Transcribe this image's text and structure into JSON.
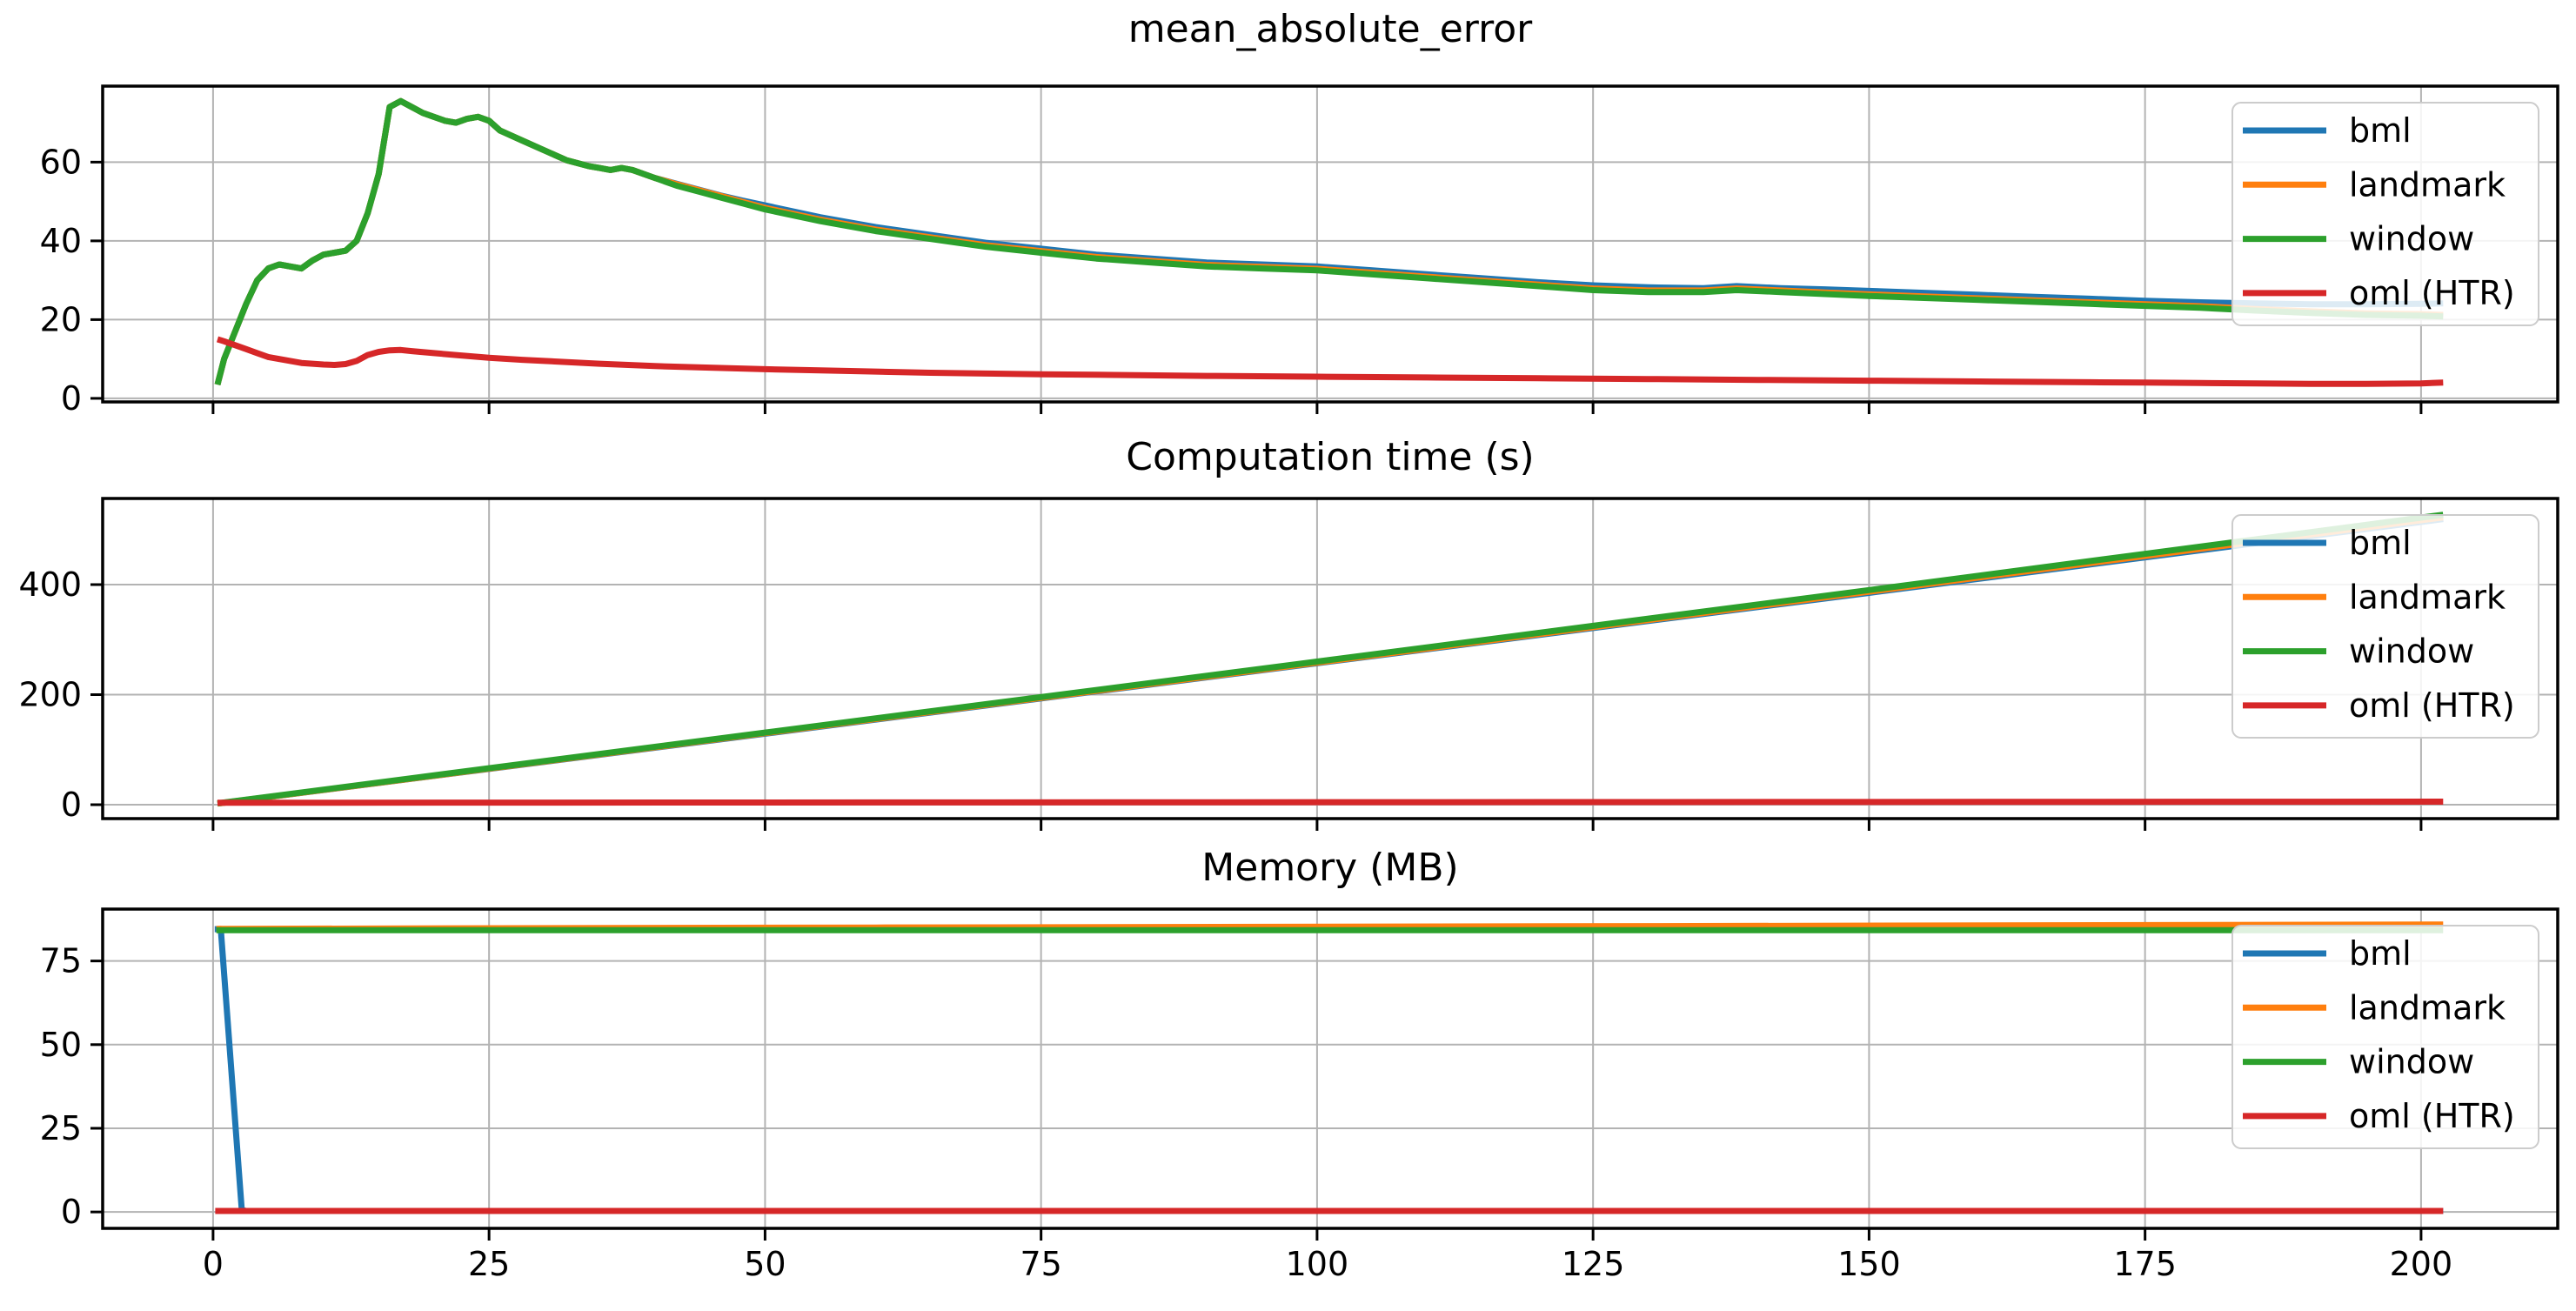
{
  "figure": {
    "background": "#ffffff",
    "grid_color": "#b3b3b3",
    "spine_color": "#000000",
    "tick_label_color": "#000000",
    "legend_border_color": "#cccccc",
    "legend_background": "#ffffff"
  },
  "series_colors": {
    "bml": "#1f77b4",
    "landmark": "#ff7f0e",
    "window": "#2ca02c",
    "oml": "#d62728"
  },
  "chart_data": [
    {
      "type": "line",
      "title": "mean_absolute_error",
      "xlim": [
        -10,
        212.4
      ],
      "ylim": [
        -0.9,
        79.3
      ],
      "xticks": [
        0,
        25,
        50,
        75,
        100,
        125,
        150,
        175,
        200
      ],
      "yticks": [
        0,
        20,
        40,
        60
      ],
      "show_x_tick_labels": false,
      "grid": true,
      "legend_position": "upper-right",
      "legend": [
        "bml",
        "landmark",
        "window",
        "oml (HTR)"
      ],
      "series": [
        {
          "name": "bml",
          "color": "#1f77b4",
          "x": [
            0.4,
            1,
            2,
            3,
            4,
            5,
            6,
            7,
            8,
            9,
            10,
            11,
            12,
            13,
            14,
            15,
            16,
            17,
            18,
            19,
            20,
            21,
            22,
            23,
            24,
            25,
            26,
            28,
            30,
            32,
            34,
            35,
            36,
            37,
            38,
            40,
            42,
            44,
            46,
            48,
            50,
            55,
            60,
            65,
            70,
            75,
            80,
            85,
            90,
            95,
            100,
            105,
            110,
            115,
            120,
            125,
            130,
            135,
            138,
            142,
            146,
            150,
            155,
            160,
            165,
            170,
            175,
            180,
            185,
            190,
            195,
            200,
            202
          ],
          "y": [
            3.5,
            10,
            17,
            24,
            30,
            33,
            34,
            33.5,
            33,
            35,
            36.5,
            37,
            37.5,
            40,
            47,
            57,
            74,
            75.5,
            74,
            72.5,
            71.5,
            70.5,
            70,
            71,
            71.5,
            70.5,
            68,
            65.5,
            63,
            60.5,
            59,
            58.5,
            58,
            58.5,
            58,
            56,
            54.5,
            53,
            51.5,
            50.2,
            49,
            46,
            43.5,
            41.5,
            39.5,
            38,
            36.5,
            35.5,
            34.5,
            34,
            33.5,
            32.5,
            31.5,
            30.5,
            29.5,
            28.7,
            28.2,
            28,
            28.5,
            28,
            27.7,
            27.3,
            26.8,
            26.3,
            25.8,
            25.3,
            24.8,
            24.4,
            24.1,
            23.9,
            23.9,
            24,
            24.1
          ]
        },
        {
          "name": "landmark",
          "color": "#ff7f0e",
          "x": [
            0.4,
            1,
            2,
            3,
            4,
            5,
            6,
            7,
            8,
            9,
            10,
            11,
            12,
            13,
            14,
            15,
            16,
            17,
            18,
            19,
            20,
            21,
            22,
            23,
            24,
            25,
            26,
            28,
            30,
            32,
            34,
            35,
            36,
            37,
            38,
            40,
            42,
            44,
            46,
            48,
            50,
            55,
            60,
            65,
            70,
            75,
            80,
            85,
            90,
            95,
            100,
            105,
            110,
            115,
            120,
            125,
            130,
            135,
            138,
            142,
            146,
            150,
            155,
            160,
            165,
            170,
            175,
            180,
            185,
            190,
            195,
            200,
            202
          ],
          "y": [
            3.5,
            10,
            17,
            24,
            30,
            33,
            34,
            33.5,
            33,
            35,
            36.5,
            37,
            37.5,
            40,
            47,
            57,
            74,
            75.5,
            74,
            72.5,
            71.5,
            70.5,
            70,
            71,
            71.5,
            70.5,
            68,
            65.5,
            63,
            60.5,
            59,
            58.5,
            58,
            58.5,
            58,
            56,
            54.4,
            52.9,
            51.4,
            49.9,
            48.4,
            45.4,
            42.9,
            40.9,
            38.9,
            37.4,
            35.9,
            34.9,
            33.9,
            33.4,
            32.9,
            31.9,
            30.9,
            29.9,
            28.9,
            27.9,
            27.4,
            27.4,
            27.9,
            27.4,
            26.9,
            26.4,
            25.9,
            25.4,
            24.9,
            24.4,
            23.9,
            23.4,
            22.7,
            22.1,
            21.6,
            21.4,
            21.2
          ]
        },
        {
          "name": "window",
          "color": "#2ca02c",
          "x": [
            0.4,
            1,
            2,
            3,
            4,
            5,
            6,
            7,
            8,
            9,
            10,
            11,
            12,
            13,
            14,
            15,
            16,
            17,
            18,
            19,
            20,
            21,
            22,
            23,
            24,
            25,
            26,
            28,
            30,
            32,
            34,
            35,
            36,
            37,
            38,
            40,
            42,
            44,
            46,
            48,
            50,
            55,
            60,
            65,
            70,
            75,
            80,
            85,
            90,
            95,
            100,
            105,
            110,
            115,
            120,
            125,
            130,
            135,
            138,
            142,
            146,
            150,
            155,
            160,
            165,
            170,
            175,
            180,
            185,
            190,
            195,
            200,
            202
          ],
          "y": [
            3.5,
            10,
            17,
            24,
            30,
            33,
            34,
            33.5,
            33,
            35,
            36.5,
            37,
            37.5,
            40,
            47,
            57,
            74,
            75.5,
            74,
            72.5,
            71.5,
            70.5,
            70,
            71,
            71.5,
            70.5,
            68,
            65.5,
            63,
            60.5,
            59,
            58.5,
            58,
            58.5,
            58,
            56,
            54,
            52.5,
            51,
            49.5,
            48,
            45,
            42.5,
            40.5,
            38.5,
            37,
            35.5,
            34.5,
            33.5,
            33,
            32.5,
            31.5,
            30.5,
            29.5,
            28.5,
            27.5,
            27,
            27,
            27.5,
            27,
            26.5,
            26,
            25.5,
            25,
            24.5,
            24,
            23.5,
            23,
            22.3,
            21.7,
            21.2,
            21,
            20.8
          ]
        },
        {
          "name": "oml (HTR)",
          "color": "#d62728",
          "x": [
            0.4,
            1,
            2,
            3,
            4,
            5,
            6,
            7,
            8,
            9,
            10,
            11,
            12,
            13,
            14,
            15,
            16,
            17,
            18,
            20,
            22,
            25,
            28,
            30,
            35,
            40,
            45,
            50,
            55,
            60,
            65,
            70,
            75,
            80,
            90,
            100,
            110,
            120,
            130,
            140,
            150,
            160,
            170,
            175,
            180,
            185,
            190,
            195,
            200,
            202
          ],
          "y": [
            15,
            14.5,
            13.5,
            12.5,
            11.5,
            10.5,
            10,
            9.5,
            9,
            8.8,
            8.6,
            8.5,
            8.7,
            9.5,
            11,
            11.8,
            12.2,
            12.3,
            12,
            11.5,
            11,
            10.3,
            9.8,
            9.5,
            8.8,
            8.2,
            7.8,
            7.4,
            7.1,
            6.8,
            6.5,
            6.3,
            6.1,
            6,
            5.7,
            5.5,
            5.3,
            5.1,
            4.9,
            4.7,
            4.5,
            4.3,
            4.1,
            4,
            3.9,
            3.8,
            3.7,
            3.7,
            3.8,
            4
          ]
        }
      ]
    },
    {
      "type": "line",
      "title": "Computation time (s)",
      "xlim": [
        -10,
        212.4
      ],
      "ylim": [
        -25.3,
        556.5
      ],
      "xticks": [
        0,
        25,
        50,
        75,
        100,
        125,
        150,
        175,
        200
      ],
      "yticks": [
        0,
        200,
        400
      ],
      "show_x_tick_labels": false,
      "grid": true,
      "legend_position": "upper-right",
      "legend": [
        "bml",
        "landmark",
        "window",
        "oml (HTR)"
      ],
      "series": [
        {
          "name": "bml",
          "color": "#1f77b4",
          "x": [
            0.4,
            50,
            100,
            150,
            202
          ],
          "y": [
            2,
            129,
            257,
            385,
            519
          ]
        },
        {
          "name": "landmark",
          "color": "#ff7f0e",
          "x": [
            0.4,
            50,
            100,
            150,
            202
          ],
          "y": [
            2,
            130,
            258,
            387,
            522
          ]
        },
        {
          "name": "window",
          "color": "#2ca02c",
          "x": [
            0.4,
            50,
            100,
            150,
            202
          ],
          "y": [
            2.5,
            131,
            260,
            390,
            527
          ]
        },
        {
          "name": "oml (HTR)",
          "color": "#d62728",
          "x": [
            0.4,
            202
          ],
          "y": [
            3.5,
            5.5
          ]
        }
      ]
    },
    {
      "type": "line",
      "title": "Memory (MB)",
      "xlim": [
        -10,
        212.4
      ],
      "ylim": [
        -4.9,
        90.5
      ],
      "xticks": [
        0,
        25,
        50,
        75,
        100,
        125,
        150,
        175,
        200
      ],
      "yticks": [
        0,
        25,
        50,
        75
      ],
      "show_x_tick_labels": true,
      "grid": true,
      "legend_position": "upper-right",
      "legend": [
        "bml",
        "landmark",
        "window",
        "oml (HTR)"
      ],
      "series": [
        {
          "name": "bml",
          "color": "#1f77b4",
          "x": [
            0.15,
            0.7,
            2.6,
            3,
            202
          ],
          "y": [
            84.5,
            84.5,
            0.6,
            0.3,
            0.3
          ]
        },
        {
          "name": "landmark",
          "color": "#ff7f0e",
          "x": [
            0.3,
            60,
            130,
            202
          ],
          "y": [
            84.6,
            85,
            85.4,
            85.9
          ]
        },
        {
          "name": "window",
          "color": "#2ca02c",
          "x": [
            0.3,
            202
          ],
          "y": [
            84.2,
            84.2
          ]
        },
        {
          "name": "oml (HTR)",
          "color": "#d62728",
          "x": [
            0.2,
            202
          ],
          "y": [
            0.3,
            0.3
          ]
        }
      ]
    }
  ]
}
